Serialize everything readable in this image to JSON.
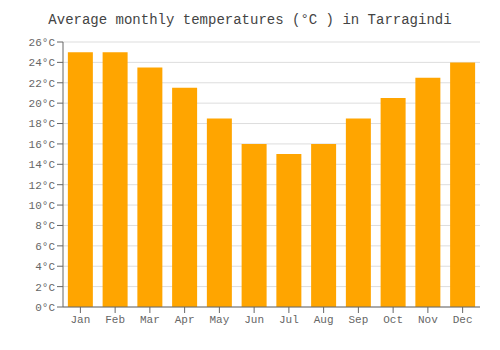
{
  "chart_data": {
    "type": "bar",
    "title": "Average monthly temperatures (°C ) in Tarragindi",
    "categories": [
      "Jan",
      "Feb",
      "Mar",
      "Apr",
      "May",
      "Jun",
      "Jul",
      "Aug",
      "Sep",
      "Oct",
      "Nov",
      "Dec"
    ],
    "values": [
      25.0,
      25.0,
      23.5,
      21.5,
      18.5,
      16.0,
      15.0,
      16.0,
      18.5,
      20.5,
      22.5,
      24.0
    ],
    "color": "#FFA500",
    "ylim": [
      0,
      26
    ],
    "yticks": [
      {
        "value": 0,
        "label": "0°C"
      },
      {
        "value": 2,
        "label": "2°C"
      },
      {
        "value": 4,
        "label": "4°C"
      },
      {
        "value": 6,
        "label": "6°C"
      },
      {
        "value": 8,
        "label": "8°C"
      },
      {
        "value": 10,
        "label": "10°C"
      },
      {
        "value": 12,
        "label": "12°C"
      },
      {
        "value": 14,
        "label": "14°C"
      },
      {
        "value": 16,
        "label": "16°C"
      },
      {
        "value": 18,
        "label": "18°C"
      },
      {
        "value": 20,
        "label": "20°C"
      },
      {
        "value": 22,
        "label": "22°C"
      },
      {
        "value": 24,
        "label": "24°C"
      },
      {
        "value": 26,
        "label": "26°C"
      }
    ],
    "grid": true
  }
}
